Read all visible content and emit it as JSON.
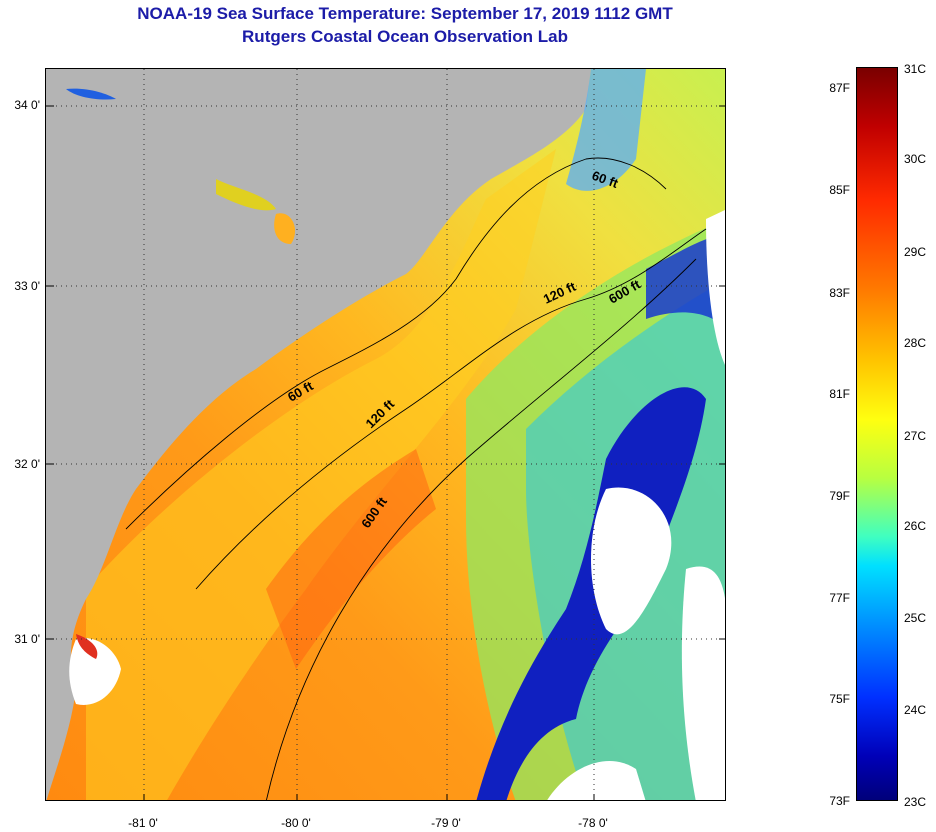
{
  "header": {
    "title": "NOAA-19 Sea Surface Temperature:  September 17, 2019 1112 GMT",
    "subtitle": "Rutgers Coastal Ocean Observation Lab"
  },
  "map": {
    "lat_labels": [
      "34 0'",
      "33 0'",
      "32 0'",
      "31 0'"
    ],
    "lon_labels": [
      "-81 0'",
      "-80 0'",
      "-79 0'",
      "-78 0'"
    ],
    "contours": [
      "60 ft",
      "120 ft",
      "600 ft",
      "60 ft",
      "120 ft",
      "600 ft"
    ],
    "colors": {
      "land": "#b4b4b4",
      "cloud": "#ffffff"
    }
  },
  "colorbar": {
    "fahrenheit": [
      "87F",
      "85F",
      "83F",
      "81F",
      "79F",
      "77F",
      "75F",
      "73F"
    ],
    "celsius": [
      "31C",
      "30C",
      "29C",
      "28C",
      "27C",
      "26C",
      "25C",
      "24C",
      "23C"
    ]
  }
}
